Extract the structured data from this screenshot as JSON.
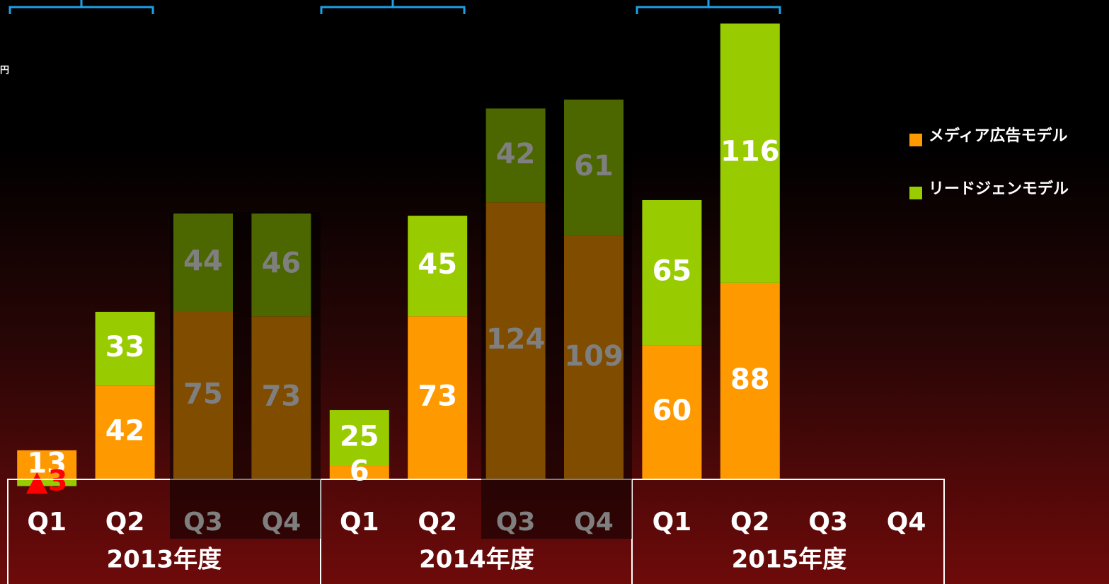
{
  "chart_data": {
    "type": "stacked_bar",
    "unit": "円",
    "categories": [
      "Q1",
      "Q2",
      "Q3",
      "Q4",
      "Q1",
      "Q2",
      "Q3",
      "Q4",
      "Q1",
      "Q2",
      "Q3",
      "Q4"
    ],
    "groups": [
      "2013年度",
      "2014年度",
      "2015年度"
    ],
    "series": [
      {
        "name": "メディア広告モデル",
        "color": "#ff9900",
        "values": [
          13,
          42,
          75,
          73,
          6,
          73,
          124,
          109,
          60,
          88,
          null,
          null
        ]
      },
      {
        "name": "リードジェンモデル",
        "color": "#99cc00",
        "values": [
          -3,
          33,
          44,
          46,
          25,
          45,
          42,
          61,
          65,
          116,
          null,
          null
        ],
        "value_labels": [
          "▲3",
          "33",
          "44",
          "46",
          "25",
          "45",
          "42",
          "61",
          "65",
          "116",
          null,
          null
        ]
      }
    ],
    "ylim": [
      0,
      210
    ]
  }
}
